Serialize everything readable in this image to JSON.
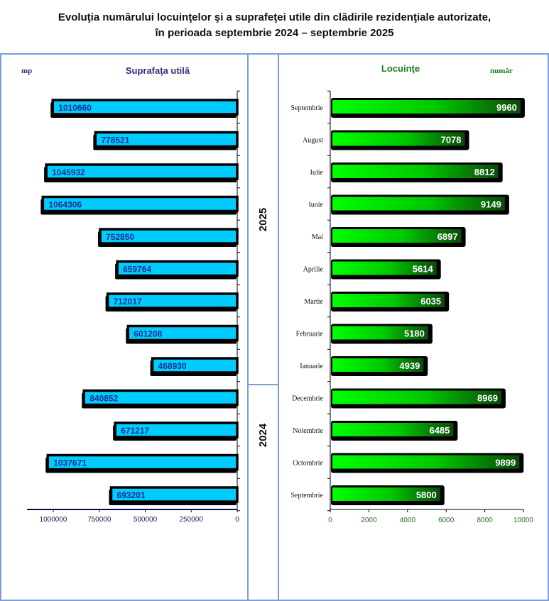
{
  "title_line1": "Evoluţia numărului locuinţelor şi a suprafeţei utile din clădirile rezidenţiale autorizate,",
  "title_line2": "în perioada septembrie 2024 – septembrie 2025",
  "years": [
    "2025",
    "2024"
  ],
  "colors": {
    "area_bar": "#00ccff",
    "area_label": "#1a2f8c",
    "dwellings_bar_light": "#00ff00",
    "dwellings_bar_dark": "#0a4a0a",
    "frame": "#7a9fd8",
    "area_title": "#2e2e80",
    "dwellings_title": "#1e7a1e"
  },
  "chart_data": [
    {
      "type": "bar",
      "orientation": "horizontal-reversed",
      "title": "Suprafaţa utilă",
      "unit_label": "mp",
      "categories": [
        "Septembrie 2025",
        "August 2025",
        "Iulie 2025",
        "Iunie 2025",
        "Mai 2025",
        "Aprilie 2025",
        "Martie 2025",
        "Februarie 2025",
        "Ianuarie 2025",
        "Decembrie 2024",
        "Noiembrie 2024",
        "Octombrie 2024",
        "Septembrie 2024"
      ],
      "values": [
        1010660,
        778521,
        1045932,
        1064306,
        752850,
        659764,
        712017,
        601208,
        468930,
        840852,
        671217,
        1037671,
        693201
      ],
      "xticks": [
        "1000000",
        "750000",
        "500000",
        "250000",
        "0"
      ],
      "xtick_values": [
        1000000,
        750000,
        500000,
        250000,
        0
      ],
      "xlim": [
        0,
        1150000
      ]
    },
    {
      "type": "bar",
      "orientation": "horizontal",
      "title": "Locuinţe",
      "unit_label": "număr",
      "categories": [
        "Septembrie",
        "August",
        "Iulie",
        "Iunie",
        "Mai",
        "Aprilie",
        "Martie",
        "Februarie",
        "Ianuarie",
        "Decembrie",
        "Noiembrie",
        "Octombrie",
        "Septembrie"
      ],
      "values": [
        9960,
        7078,
        8812,
        9149,
        6897,
        5614,
        6035,
        5180,
        4939,
        8969,
        6485,
        9899,
        5800
      ],
      "xticks": [
        "0",
        "2000",
        "4000",
        "6000",
        "8000",
        "10000"
      ],
      "xtick_values": [
        0,
        2000,
        4000,
        6000,
        8000,
        10000
      ],
      "xlim": [
        0,
        10000
      ]
    }
  ]
}
